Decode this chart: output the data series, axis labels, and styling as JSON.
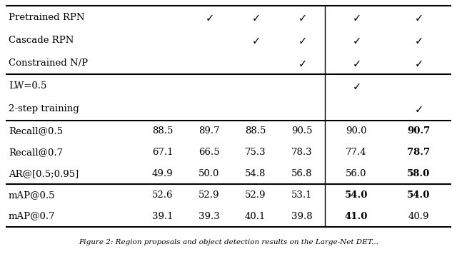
{
  "rows": [
    {
      "label": "Pretrained RPN",
      "checks": [
        false,
        true,
        true,
        true,
        true,
        true
      ]
    },
    {
      "label": "Cascade RPN",
      "checks": [
        false,
        false,
        true,
        true,
        true,
        true
      ]
    },
    {
      "label": "Constrained N/P",
      "checks": [
        false,
        false,
        false,
        true,
        true,
        true
      ]
    },
    {
      "label": "LW=0.5",
      "checks": [
        false,
        false,
        false,
        false,
        true,
        false
      ]
    },
    {
      "label": "2-step training",
      "checks": [
        false,
        false,
        false,
        false,
        false,
        true
      ]
    },
    {
      "label": "Recall@0.5",
      "values": [
        "88.5",
        "89.7",
        "88.5",
        "90.5",
        "90.0",
        "90.7"
      ],
      "bold_cols": [
        5
      ]
    },
    {
      "label": "Recall@0.7",
      "values": [
        "67.1",
        "66.5",
        "75.3",
        "78.3",
        "77.4",
        "78.7"
      ],
      "bold_cols": [
        5
      ]
    },
    {
      "label": "AR@[0.5;0.95]",
      "values": [
        "49.9",
        "50.0",
        "54.8",
        "56.8",
        "56.0",
        "58.0"
      ],
      "bold_cols": [
        5
      ]
    },
    {
      "label": "mAP@0.5",
      "values": [
        "52.6",
        "52.9",
        "52.9",
        "53.1",
        "54.0",
        "54.0"
      ],
      "bold_cols": [
        4,
        5
      ]
    },
    {
      "label": "mAP@0.7",
      "values": [
        "39.1",
        "39.3",
        "40.1",
        "39.8",
        "41.0",
        "40.9"
      ],
      "bold_cols": [
        4
      ]
    }
  ],
  "thick_lines_after": [
    2,
    4,
    7,
    9
  ],
  "n_data_cols": 6,
  "bg_color": "#ffffff",
  "text_color": "#000000",
  "font_size": 9.5,
  "caption": "Figure 2: Region proposals and object detection results on the Large-Net DET..."
}
